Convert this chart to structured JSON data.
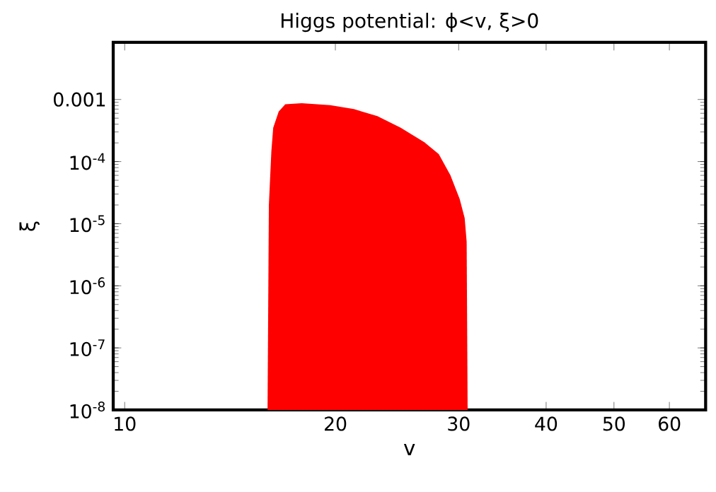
{
  "chart_data": {
    "type": "area",
    "title": "Higgs potential: ϕ<v, ξ>0",
    "xlabel": "v",
    "ylabel": "ξ",
    "log": "xy",
    "xlim": [
      9.63,
      67.6
    ],
    "ylim": [
      1e-08,
      0.0083
    ],
    "xticks": [
      10,
      20,
      30,
      40,
      50,
      60
    ],
    "yticks": [
      {
        "value": 1e-08,
        "label": "10$^{-8}$"
      },
      {
        "value": 1e-07,
        "label": "10$^{-7}$"
      },
      {
        "value": 1e-06,
        "label": "10$^{-6}$"
      },
      {
        "value": 1e-05,
        "label": "10$^{-5}$"
      },
      {
        "value": 0.0001,
        "label": "10$^{-4}$"
      },
      0.001
    ],
    "series": [
      {
        "color": "#ff0000",
        "x": [
          16.0,
          16.07,
          16.2,
          16.3,
          16.6,
          16.96,
          17.9,
          19.66,
          21.25,
          22.96,
          24.8,
          26.8,
          28.1,
          29.2,
          30.1,
          30.6,
          30.8,
          30.9
        ],
        "values": [
          1e-08,
          2e-05,
          0.000144,
          0.00035,
          0.00064,
          0.00084,
          0.00087,
          0.00081,
          0.0007,
          0.00054,
          0.00035,
          0.000205,
          0.000132,
          6e-05,
          2.5e-05,
          1.23e-05,
          5.1e-06,
          1e-08
        ]
      }
    ]
  }
}
